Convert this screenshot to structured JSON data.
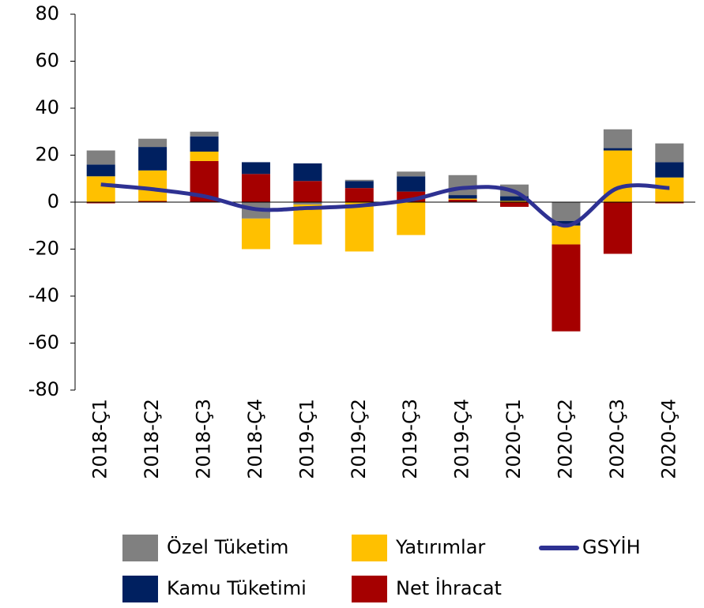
{
  "chart_data": {
    "type": "bar",
    "categories": [
      "2018-Ç1",
      "2018-Ç2",
      "2018-Ç3",
      "2018-Ç4",
      "2019-Ç1",
      "2019-Ç2",
      "2019-Ç3",
      "2019-Ç4",
      "2020-Ç1",
      "2020-Ç2",
      "2020-Ç3",
      "2020-Ç4"
    ],
    "series": [
      {
        "name": "Özel Tüketim",
        "type": "bar",
        "color": "#808080",
        "values": [
          6,
          3.5,
          2,
          -7,
          -1,
          0.5,
          2,
          8.5,
          5,
          -8,
          8,
          8
        ]
      },
      {
        "name": "Kamu Tüketimi",
        "type": "bar",
        "color": "#002060",
        "values": [
          5,
          10,
          6.5,
          5,
          7.5,
          3,
          6.5,
          1.5,
          2,
          -2,
          1,
          6.5
        ]
      },
      {
        "name": "Yatırımlar",
        "type": "bar",
        "color": "#FFC000",
        "values": [
          11,
          13,
          4,
          -13,
          -17,
          -21,
          -14,
          0.5,
          0.5,
          -8,
          22,
          10.5
        ]
      },
      {
        "name": "Net İhracat",
        "type": "bar",
        "color": "#A50000",
        "values": [
          -0.5,
          0.5,
          17.5,
          12,
          9,
          6,
          4.5,
          1,
          -2,
          -37,
          -22,
          -0.5
        ]
      },
      {
        "name": "GSYİH",
        "type": "line",
        "color": "#2E3192",
        "values": [
          7.5,
          5.5,
          2.5,
          -3,
          -2.5,
          -1.5,
          1,
          6,
          4.5,
          -10,
          6,
          6
        ]
      }
    ],
    "ylim": [
      -80,
      80
    ],
    "yticks": [
      -80,
      -60,
      -40,
      -20,
      0,
      20,
      40,
      60,
      80
    ]
  }
}
